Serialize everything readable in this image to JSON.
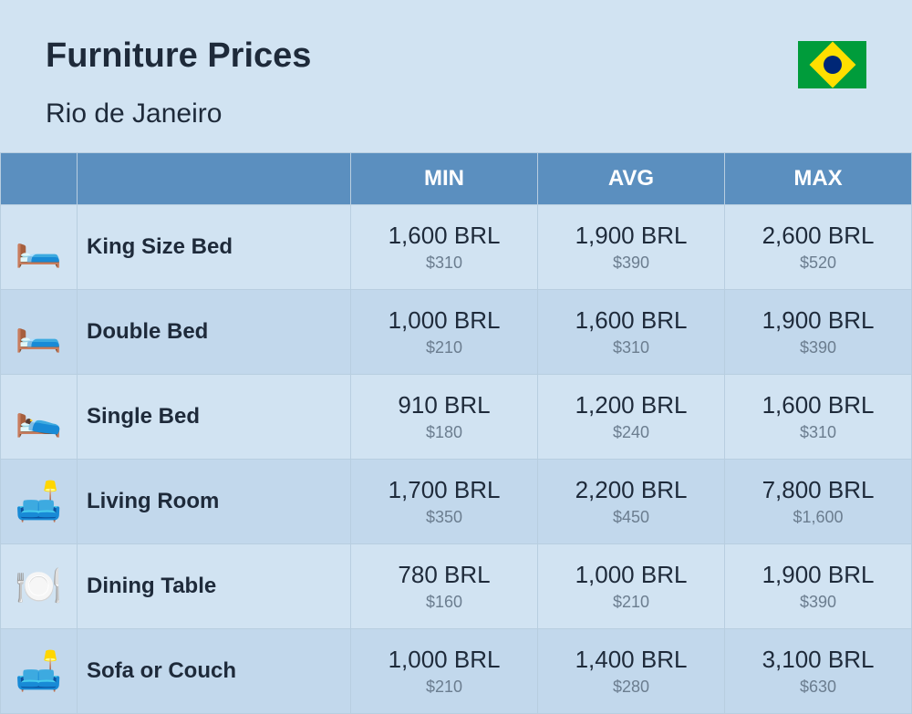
{
  "header": {
    "title": "Furniture Prices",
    "location": "Rio de Janeiro"
  },
  "columns": {
    "col1": "",
    "col2": "",
    "min": "MIN",
    "avg": "AVG",
    "max": "MAX"
  },
  "rows": [
    {
      "icon": "🛏️",
      "name": "King Size Bed",
      "min_main": "1,600 BRL",
      "min_sub": "$310",
      "avg_main": "1,900 BRL",
      "avg_sub": "$390",
      "max_main": "2,600 BRL",
      "max_sub": "$520"
    },
    {
      "icon": "🛏️",
      "name": "Double Bed",
      "min_main": "1,000 BRL",
      "min_sub": "$210",
      "avg_main": "1,600 BRL",
      "avg_sub": "$310",
      "max_main": "1,900 BRL",
      "max_sub": "$390"
    },
    {
      "icon": "🛌",
      "name": "Single Bed",
      "min_main": "910 BRL",
      "min_sub": "$180",
      "avg_main": "1,200 BRL",
      "avg_sub": "$240",
      "max_main": "1,600 BRL",
      "max_sub": "$310"
    },
    {
      "icon": "🛋️",
      "name": "Living Room",
      "min_main": "1,700 BRL",
      "min_sub": "$350",
      "avg_main": "2,200 BRL",
      "avg_sub": "$450",
      "max_main": "7,800 BRL",
      "max_sub": "$1,600"
    },
    {
      "icon": "🍽️",
      "name": "Dining Table",
      "min_main": "780 BRL",
      "min_sub": "$160",
      "avg_main": "1,000 BRL",
      "avg_sub": "$210",
      "max_main": "1,900 BRL",
      "max_sub": "$390"
    },
    {
      "icon": "🛋️",
      "name": "Sofa or Couch",
      "min_main": "1,000 BRL",
      "min_sub": "$210",
      "avg_main": "1,400 BRL",
      "avg_sub": "$280",
      "max_main": "3,100 BRL",
      "max_sub": "$630"
    }
  ],
  "styling": {
    "background_color": "#d1e3f2",
    "header_bg": "#5b8fbf",
    "header_text_color": "#ffffff",
    "row_odd_bg": "#d1e3f2",
    "row_even_bg": "#c2d8ec",
    "border_color": "#b8cee0",
    "title_color": "#1e2a3a",
    "price_main_color": "#1e2a3a",
    "price_sub_color": "#6b7d8f",
    "title_fontsize": 38,
    "subtitle_fontsize": 30,
    "header_fontsize": 24,
    "item_fontsize": 24,
    "price_main_fontsize": 26,
    "price_sub_fontsize": 18
  }
}
